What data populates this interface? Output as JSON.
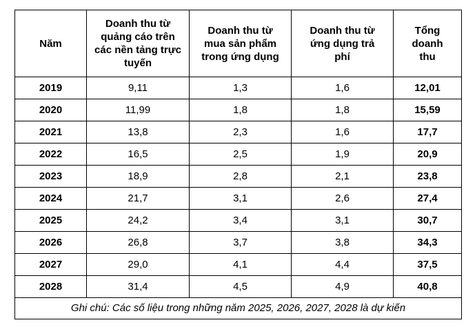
{
  "table": {
    "headers": [
      "Năm",
      "Doanh thu từ quảng cáo trên các nền tảng trực tuyến",
      "Doanh thu từ mua sản phẩm trong ứng dụng",
      "Doanh thu từ ứng dụng trả phí",
      "Tổng doanh thu"
    ],
    "rows": [
      [
        "2019",
        "9,11",
        "1,3",
        "1,6",
        "12,01"
      ],
      [
        "2020",
        "11,99",
        "1,8",
        "1,8",
        "15,59"
      ],
      [
        "2021",
        "13,8",
        "2,3",
        "1,6",
        "17,7"
      ],
      [
        "2022",
        "16,5",
        "2,5",
        "1,9",
        "20,9"
      ],
      [
        "2023",
        "18,9",
        "2,8",
        "2,1",
        "23,8"
      ],
      [
        "2024",
        "21,7",
        "3,1",
        "2,6",
        "27,4"
      ],
      [
        "2025",
        "24,2",
        "3,4",
        "3,1",
        "30,7"
      ],
      [
        "2026",
        "26,8",
        "3,7",
        "3,8",
        "34,3"
      ],
      [
        "2027",
        "29,0",
        "4,1",
        "4,4",
        "37,5"
      ],
      [
        "2028",
        "31,4",
        "4,5",
        "4,9",
        "40,8"
      ]
    ],
    "note": "Ghi chú: Các số liệu trong những năm 2025, 2026, 2027, 2028 là dự kiến"
  }
}
